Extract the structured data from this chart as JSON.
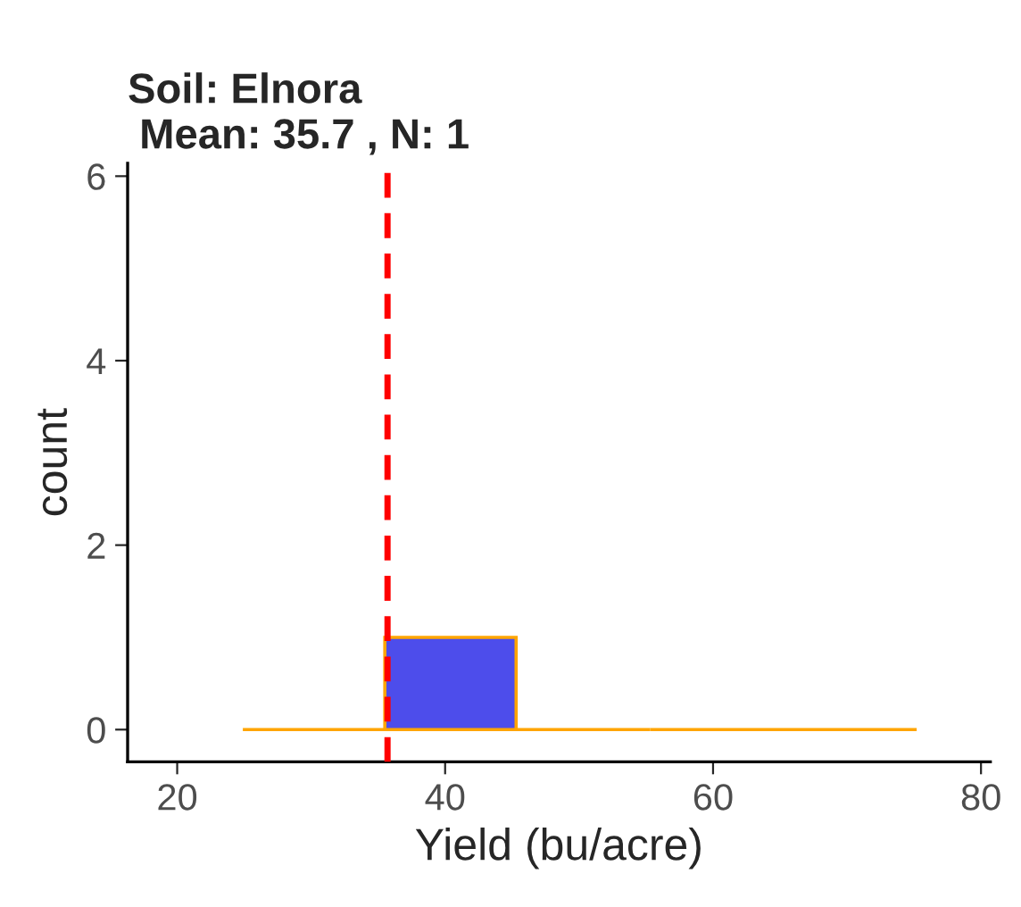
{
  "chart_data": {
    "type": "histogram",
    "title": "Soil: Elnora\n Mean: 35.7 , N: 1",
    "xlabel": "Yield (bu/acre)",
    "ylabel": "count",
    "bins": [
      24.9,
      35.5,
      45.3,
      55.3,
      65.2,
      75.2
    ],
    "values": [
      0,
      1,
      0,
      0,
      0
    ],
    "colors": [
      "#ffa500",
      "#4d4deb",
      "#ffa500",
      "#ffa500",
      "#ffa500"
    ],
    "xlim": [
      16.3,
      80.7
    ],
    "xticks": [
      20,
      40,
      60,
      80
    ],
    "ylim": [
      -0.35,
      6.14
    ],
    "yticks": [
      0,
      2,
      4,
      6
    ],
    "ref_lines": [
      {
        "axis": "x",
        "value": 35.7,
        "color": "#ff0000",
        "line_style": "dashed"
      }
    ],
    "grid": false,
    "legend": false
  }
}
